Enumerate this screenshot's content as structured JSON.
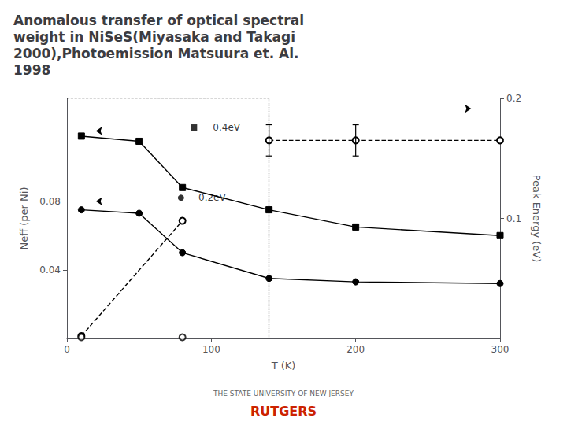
{
  "chart_data": {
    "type": "line",
    "title": "Anomalous transfer of optical spectral\nweight in NiSeS(Miyasaka and Takagi\n2000),Photoemission Matsuura et. Al.\n1998",
    "xlabel": "T (K)",
    "ylabel": "Neff (per Ni)",
    "y2label": "Peak Energy (eV)",
    "xlim": [
      0,
      300
    ],
    "xticks": [
      0,
      100,
      200,
      300
    ],
    "ylim": [
      0,
      0.14
    ],
    "yticks": [
      0.04,
      0.08
    ],
    "y2lim": [
      0,
      0.2
    ],
    "y2ticks": [
      0.1,
      0.2
    ],
    "grid": false,
    "series": [
      {
        "x": [
          10,
          50,
          80,
          140,
          200,
          300
        ],
        "values": [
          0.118,
          0.115,
          0.088,
          0.075,
          0.065,
          0.06
        ],
        "marker": "square",
        "line_style": "solid",
        "color": "#000000"
      },
      {
        "x": [
          10,
          50,
          80,
          140,
          200,
          300
        ],
        "values": [
          0.075,
          0.073,
          0.05,
          0.035,
          0.033,
          0.032
        ],
        "marker": "circle",
        "line_style": "solid",
        "color": "#000000"
      },
      {
        "x": [
          10,
          80
        ],
        "values": [
          0.002,
          0.098
        ],
        "axis": "y2",
        "marker": "open_circle",
        "line_style": "dashed",
        "color": "#000000"
      },
      {
        "x": [
          140,
          200,
          300
        ],
        "values": [
          0.165,
          0.165,
          0.165
        ],
        "errors": [
          0.013,
          0.013,
          0.0
        ],
        "axis": "y2",
        "marker": "open_circle",
        "line_style": "dashed",
        "color": "#000000"
      },
      {
        "type": "scatter",
        "x": [
          10,
          80
        ],
        "values": [
          0.001,
          0.001
        ],
        "axis": "y2",
        "marker": "open_circle",
        "color": "#000000"
      },
      {
        "x": [
          0,
          140
        ],
        "values": [
          0.14,
          0.14
        ],
        "marker": "none",
        "line_style": "dashed",
        "color": "#000000"
      },
      {
        "type": "vline",
        "x": [
          140
        ],
        "line_style": "dotted",
        "color": "#000000"
      }
    ],
    "annotations": [
      {
        "text": "0.4eV",
        "x": 100,
        "y": 0.123
      },
      {
        "marker": "square",
        "x": 88,
        "y": 0.123,
        "color": "#000000"
      },
      {
        "arrow_from": [
          65,
          0.121
        ],
        "arrow_to": [
          20,
          0.121
        ],
        "color": "#000000"
      },
      {
        "text": "0.2eV",
        "x": 90,
        "y": 0.082
      },
      {
        "marker": "circle",
        "x": 79,
        "y": 0.082,
        "color": "#000000"
      },
      {
        "arrow_from": [
          65,
          0.08
        ],
        "arrow_to": [
          20,
          0.08
        ],
        "color": "#000000"
      },
      {
        "arrow_from": [
          170,
          0.134
        ],
        "arrow_to": [
          280,
          0.134
        ],
        "color": "#000000"
      },
      {
        "text": "THE STATE UNIVERSITY OF NEW JERSEY"
      },
      {
        "text": "RUTGERS",
        "color": "#cc2200"
      }
    ]
  }
}
